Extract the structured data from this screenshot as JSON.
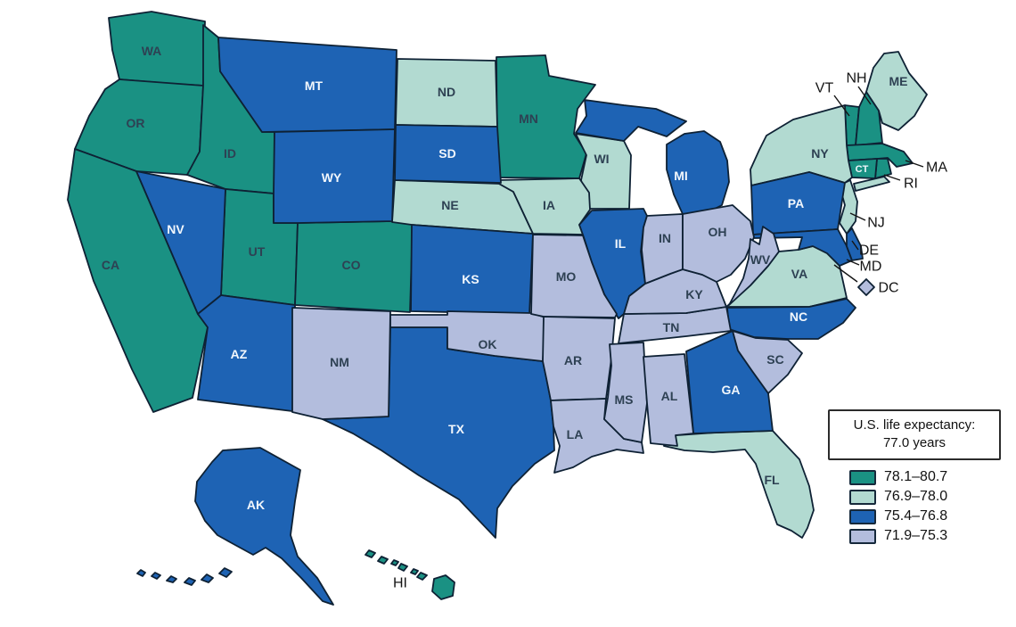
{
  "chart_data": {
    "type": "choropleth",
    "region": "United States",
    "title": "U.S. life expectancy: 77.0 years",
    "annotation_box": {
      "line1": "U.S. life expectancy:",
      "line2": "77.0 years"
    },
    "legend": [
      {
        "range": "78.1–80.7",
        "color": "#1a9183"
      },
      {
        "range": "76.9–78.0",
        "color": "#b2dad1"
      },
      {
        "range": "75.4–76.8",
        "color": "#1e63b4"
      },
      {
        "range": "71.9–75.3",
        "color": "#b3bddd"
      }
    ],
    "border_color": "#0e2134",
    "callout_line_color": "#151515",
    "states": [
      {
        "abbr": "WA",
        "range": "78.1–80.7"
      },
      {
        "abbr": "OR",
        "range": "78.1–80.7"
      },
      {
        "abbr": "CA",
        "range": "78.1–80.7"
      },
      {
        "abbr": "ID",
        "range": "78.1–80.7"
      },
      {
        "abbr": "UT",
        "range": "78.1–80.7"
      },
      {
        "abbr": "CO",
        "range": "78.1–80.7"
      },
      {
        "abbr": "MN",
        "range": "78.1–80.7"
      },
      {
        "abbr": "HI",
        "range": "78.1–80.7"
      },
      {
        "abbr": "VT",
        "range": "78.1–80.7"
      },
      {
        "abbr": "NH",
        "range": "78.1–80.7"
      },
      {
        "abbr": "MA",
        "range": "78.1–80.7"
      },
      {
        "abbr": "RI",
        "range": "78.1–80.7"
      },
      {
        "abbr": "CT",
        "range": "78.1–80.7"
      },
      {
        "abbr": "ME",
        "range": "76.9–78.0"
      },
      {
        "abbr": "NY",
        "range": "76.9–78.0"
      },
      {
        "abbr": "NJ",
        "range": "76.9–78.0"
      },
      {
        "abbr": "ND",
        "range": "76.9–78.0"
      },
      {
        "abbr": "WI",
        "range": "76.9–78.0"
      },
      {
        "abbr": "NE",
        "range": "76.9–78.0"
      },
      {
        "abbr": "IA",
        "range": "76.9–78.0"
      },
      {
        "abbr": "VA",
        "range": "76.9–78.0"
      },
      {
        "abbr": "FL",
        "range": "76.9–78.0"
      },
      {
        "abbr": "AK",
        "range": "75.4–76.8"
      },
      {
        "abbr": "MT",
        "range": "75.4–76.8"
      },
      {
        "abbr": "WY",
        "range": "75.4–76.8"
      },
      {
        "abbr": "NV",
        "range": "75.4–76.8"
      },
      {
        "abbr": "AZ",
        "range": "75.4–76.8"
      },
      {
        "abbr": "SD",
        "range": "75.4–76.8"
      },
      {
        "abbr": "KS",
        "range": "75.4–76.8"
      },
      {
        "abbr": "TX",
        "range": "75.4–76.8"
      },
      {
        "abbr": "MI",
        "range": "75.4–76.8"
      },
      {
        "abbr": "IL",
        "range": "75.4–76.8"
      },
      {
        "abbr": "PA",
        "range": "75.4–76.8"
      },
      {
        "abbr": "NC",
        "range": "75.4–76.8"
      },
      {
        "abbr": "GA",
        "range": "75.4–76.8"
      },
      {
        "abbr": "MD",
        "range": "75.4–76.8"
      },
      {
        "abbr": "DE",
        "range": "75.4–76.8"
      },
      {
        "abbr": "NM",
        "range": "71.9–75.3"
      },
      {
        "abbr": "OK",
        "range": "71.9–75.3"
      },
      {
        "abbr": "MO",
        "range": "71.9–75.3"
      },
      {
        "abbr": "AR",
        "range": "71.9–75.3"
      },
      {
        "abbr": "LA",
        "range": "71.9–75.3"
      },
      {
        "abbr": "MS",
        "range": "71.9–75.3"
      },
      {
        "abbr": "AL",
        "range": "71.9–75.3"
      },
      {
        "abbr": "TN",
        "range": "71.9–75.3"
      },
      {
        "abbr": "KY",
        "range": "71.9–75.3"
      },
      {
        "abbr": "IN",
        "range": "71.9–75.3"
      },
      {
        "abbr": "OH",
        "range": "71.9–75.3"
      },
      {
        "abbr": "WV",
        "range": "71.9–75.3"
      },
      {
        "abbr": "SC",
        "range": "71.9–75.3"
      },
      {
        "abbr": "DC",
        "range": "71.9–75.3"
      }
    ]
  }
}
